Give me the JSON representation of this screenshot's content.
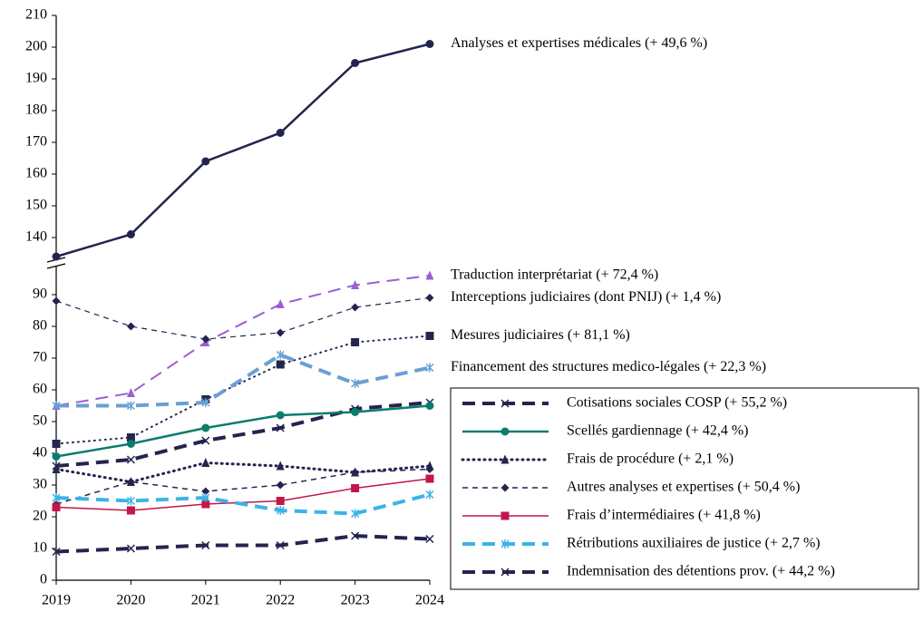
{
  "chart_data": {
    "type": "line",
    "x": [
      2019,
      2020,
      2021,
      2022,
      2023,
      2024
    ],
    "xlim": [
      2019,
      2024
    ],
    "xticks": [
      2019,
      2020,
      2021,
      2022,
      2023,
      2024
    ],
    "ylim": [
      0,
      210
    ],
    "axis_break": [
      100,
      132
    ],
    "yticks": [
      0,
      10,
      20,
      30,
      40,
      50,
      60,
      70,
      80,
      90,
      140,
      150,
      160,
      170,
      180,
      190,
      200,
      210
    ],
    "grid": false,
    "legend": "lower right",
    "series": [
      {
        "name": "Analyses et expertises médicales (+ 49,6 %)",
        "color": "#23254f",
        "dash": "solid",
        "width": 2.5,
        "marker": "circle",
        "label": "end",
        "values": [
          134,
          141,
          164,
          173,
          195,
          201
        ]
      },
      {
        "name": "Traduction interprétariat (+ 72,4 %)",
        "color": "#9b5fd2",
        "dash": "longdash",
        "width": 2,
        "marker": "triangle",
        "label": "end",
        "values": [
          55,
          59,
          75,
          87,
          93,
          96
        ]
      },
      {
        "name": "Interceptions judiciaires (dont PNIJ) (+ 1,4 %)",
        "color": "#23254f",
        "dash": "dash",
        "width": 1.2,
        "marker": "diamond",
        "label": "end",
        "values": [
          88,
          80,
          76,
          78,
          86,
          89
        ]
      },
      {
        "name": "Mesures judiciaires (+ 81,1 %)",
        "color": "#23254f",
        "dash": "dot",
        "width": 2,
        "marker": "square",
        "label": "end",
        "values": [
          43,
          45,
          57,
          68,
          75,
          77
        ]
      },
      {
        "name": "Financement des structures medico-légales (+ 22,3 %)",
        "color": "#6a9fd4",
        "dash": "longdash",
        "width": 4,
        "marker": "star",
        "label": "end",
        "values": [
          55,
          55,
          56,
          71,
          62,
          67
        ]
      },
      {
        "name": "Cotisations sociales COSP (+ 55,2 %)",
        "color": "#23254f",
        "dash": "longdash",
        "width": 4,
        "marker": "x",
        "label": "legend",
        "values": [
          36,
          38,
          44,
          48,
          54,
          56
        ]
      },
      {
        "name": "Scellés gardiennage (+ 42,4 %)",
        "color": "#0b7d6c",
        "dash": "solid",
        "width": 2.5,
        "marker": "circle",
        "label": "legend",
        "values": [
          39,
          43,
          48,
          52,
          53,
          55
        ]
      },
      {
        "name": "Frais de procédure (+ 2,1 %)",
        "color": "#23254f",
        "dash": "dot",
        "width": 3,
        "marker": "triangle",
        "label": "legend",
        "values": [
          35,
          31,
          37,
          36,
          34,
          36
        ]
      },
      {
        "name": "Autres analyses et expertises (+ 50,4 %)",
        "color": "#23254f",
        "dash": "dash",
        "width": 1.5,
        "marker": "diamond",
        "label": "legend",
        "values": [
          24,
          31,
          28,
          30,
          34,
          35
        ]
      },
      {
        "name": "Frais d’intermédiaires (+ 41,8 %)",
        "color": "#c3164b",
        "dash": "solid",
        "width": 1.5,
        "marker": "square",
        "label": "legend",
        "values": [
          23,
          22,
          24,
          25,
          29,
          32
        ]
      },
      {
        "name": "Rétributions auxiliaires de justice (+ 2,7 %)",
        "color": "#3bb4e8",
        "dash": "longdash",
        "width": 4,
        "marker": "star",
        "label": "legend",
        "values": [
          26,
          25,
          26,
          22,
          21,
          27
        ]
      },
      {
        "name": "Indemnisation des détentions prov. (+ 44,2 %)",
        "color": "#23254f",
        "dash": "longdash",
        "width": 4,
        "marker": "x",
        "label": "legend",
        "values": [
          9,
          10,
          11,
          11,
          14,
          13
        ]
      }
    ]
  }
}
